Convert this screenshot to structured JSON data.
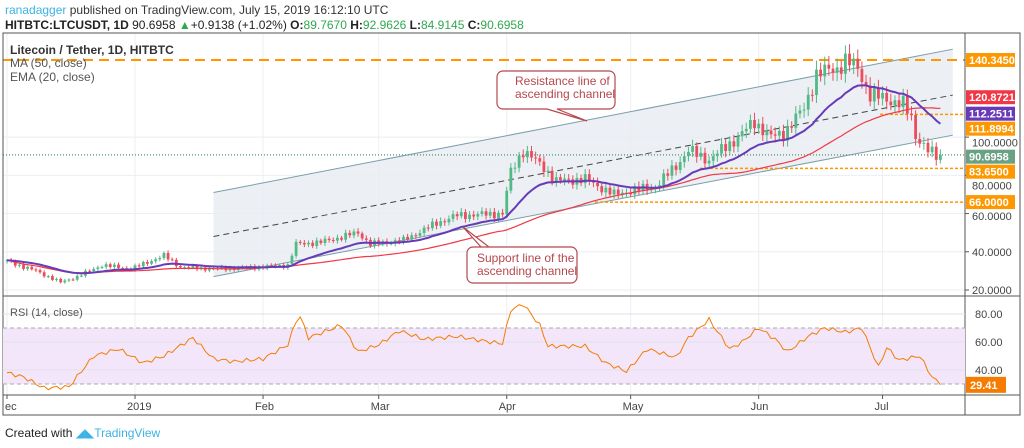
{
  "header": {
    "user": "ranadagger",
    "published": "published on TradingView.com, July 15, 2019 16:12:10 UTC",
    "symbol": "HITBTC:LTCUSDT, 1D",
    "last": "90.6958",
    "change": "+0.9138 (+1.02%)",
    "o_label": "O:",
    "o": "89.7670",
    "h_label": "H:",
    "h": "92.9626",
    "l_label": "L:",
    "l": "84.9145",
    "c_label": "C:",
    "c": "90.6958"
  },
  "legend": {
    "title": "Litecoin / Tether, 1D, HITBTC",
    "ma": "MA (50, close)",
    "ema": "EMA (20, close)",
    "rsi": "RSI (14, close)"
  },
  "annotations": {
    "resistance": [
      "Resistance line of",
      "ascending channel"
    ],
    "support": [
      "Support line of the",
      "ascending channel"
    ]
  },
  "footer": {
    "created": "Created with",
    "brand": "TradingView"
  },
  "colors": {
    "up": "#53b987",
    "down": "#eb4d5c",
    "ma": "#f23645",
    "ema": "#673ab7",
    "level": "#ff9800",
    "rsi": "#f57c00"
  },
  "chart_data": {
    "type": "candlestick",
    "price_axis": {
      "range": [
        20,
        140.345
      ],
      "ticks": [
        "100.0000",
        "80.0000",
        "60.0000",
        "40.0000",
        "20.0000"
      ]
    },
    "price_labels": [
      {
        "text": "140.3450",
        "value": 140.345,
        "color": "#ff9800"
      },
      {
        "text": "120.8721",
        "value": 120.8721,
        "color": "#f23645"
      },
      {
        "text": "112.2511",
        "value": 112.2511,
        "color": "#673ab7"
      },
      {
        "text": "111.8994",
        "value": 111.8994,
        "color": "#ff9800"
      },
      {
        "text": "90.6958",
        "value": 90.6958,
        "color": "#6aa084"
      },
      {
        "text": "83.6500",
        "value": 83.65,
        "color": "#ff9800"
      },
      {
        "text": "66.0000",
        "value": 66,
        "color": "#ff9800"
      }
    ],
    "x_ticks": [
      {
        "label": "ec",
        "date": "2018-12-01"
      },
      {
        "label": "2019",
        "date": "2019-01-01"
      },
      {
        "label": "Feb",
        "date": "2019-02-01"
      },
      {
        "label": "Mar",
        "date": "2019-03-01"
      },
      {
        "label": "Apr",
        "date": "2019-04-01"
      },
      {
        "label": "May",
        "date": "2019-05-01"
      },
      {
        "label": "Jun",
        "date": "2019-06-01"
      },
      {
        "label": "Jul",
        "date": "2019-07-01"
      }
    ],
    "close_keypoints": [
      [
        "2018-12-01",
        35
      ],
      [
        "2018-12-08",
        30
      ],
      [
        "2018-12-14",
        24
      ],
      [
        "2018-12-18",
        27
      ],
      [
        "2018-12-24",
        33
      ],
      [
        "2018-12-31",
        31
      ],
      [
        "2019-01-08",
        38
      ],
      [
        "2019-01-12",
        32
      ],
      [
        "2019-01-20",
        31
      ],
      [
        "2019-01-31",
        32
      ],
      [
        "2019-02-07",
        33
      ],
      [
        "2019-02-09",
        44
      ],
      [
        "2019-02-15",
        45
      ],
      [
        "2019-02-24",
        50
      ],
      [
        "2019-02-27",
        44
      ],
      [
        "2019-03-07",
        46
      ],
      [
        "2019-03-15",
        55
      ],
      [
        "2019-03-20",
        59
      ],
      [
        "2019-03-31",
        60
      ],
      [
        "2019-04-02",
        82
      ],
      [
        "2019-04-05",
        93
      ],
      [
        "2019-04-10",
        84
      ],
      [
        "2019-04-13",
        77
      ],
      [
        "2019-04-20",
        78
      ],
      [
        "2019-04-27",
        70
      ],
      [
        "2019-05-01",
        72
      ],
      [
        "2019-05-07",
        74
      ],
      [
        "2019-05-12",
        85
      ],
      [
        "2019-05-15",
        93
      ],
      [
        "2019-05-20",
        88
      ],
      [
        "2019-05-27",
        100
      ],
      [
        "2019-05-31",
        108
      ],
      [
        "2019-06-04",
        100
      ],
      [
        "2019-06-07",
        102
      ],
      [
        "2019-06-12",
        115
      ],
      [
        "2019-06-15",
        133
      ],
      [
        "2019-06-20",
        136
      ],
      [
        "2019-06-22",
        140
      ],
      [
        "2019-06-25",
        136
      ],
      [
        "2019-06-28",
        122
      ],
      [
        "2019-07-02",
        120
      ],
      [
        "2019-07-06",
        117
      ],
      [
        "2019-07-08",
        110
      ],
      [
        "2019-07-09",
        101
      ],
      [
        "2019-07-12",
        93
      ],
      [
        "2019-07-14",
        89.8
      ],
      [
        "2019-07-15",
        90.7
      ]
    ],
    "channel": {
      "start_date": "2019-01-20",
      "end_date": "2019-07-18",
      "support": [
        27,
        101
      ],
      "resistance": [
        71,
        146
      ],
      "mid": [
        48,
        122
      ]
    },
    "rsi": {
      "value_label": "29.41",
      "ticks": [
        "80.00",
        "60.00",
        "40.00"
      ],
      "range": [
        20,
        90
      ],
      "bands": [
        30,
        70
      ],
      "keypoints": [
        [
          "2018-12-01",
          38
        ],
        [
          "2018-12-05",
          35
        ],
        [
          "2018-12-10",
          27
        ],
        [
          "2018-12-16",
          28
        ],
        [
          "2018-12-22",
          50
        ],
        [
          "2018-12-28",
          55
        ],
        [
          "2019-01-03",
          45
        ],
        [
          "2019-01-08",
          50
        ],
        [
          "2019-01-15",
          63
        ],
        [
          "2019-01-20",
          48
        ],
        [
          "2019-01-25",
          46
        ],
        [
          "2019-02-01",
          48
        ],
        [
          "2019-02-07",
          58
        ],
        [
          "2019-02-09",
          75
        ],
        [
          "2019-02-10",
          78
        ],
        [
          "2019-02-12",
          63
        ],
        [
          "2019-02-20",
          72
        ],
        [
          "2019-02-24",
          53
        ],
        [
          "2019-03-01",
          58
        ],
        [
          "2019-03-06",
          68
        ],
        [
          "2019-03-12",
          62
        ],
        [
          "2019-03-20",
          64
        ],
        [
          "2019-03-28",
          60
        ],
        [
          "2019-03-31",
          59
        ],
        [
          "2019-04-02",
          83
        ],
        [
          "2019-04-05",
          87
        ],
        [
          "2019-04-09",
          72
        ],
        [
          "2019-04-11",
          57
        ],
        [
          "2019-04-20",
          57
        ],
        [
          "2019-04-25",
          45
        ],
        [
          "2019-04-30",
          39
        ],
        [
          "2019-05-05",
          55
        ],
        [
          "2019-05-12",
          49
        ],
        [
          "2019-05-15",
          63
        ],
        [
          "2019-05-20",
          76
        ],
        [
          "2019-05-25",
          55
        ],
        [
          "2019-05-28",
          60
        ],
        [
          "2019-06-01",
          70
        ],
        [
          "2019-06-05",
          62
        ],
        [
          "2019-06-08",
          53
        ],
        [
          "2019-06-13",
          64
        ],
        [
          "2019-06-17",
          70
        ],
        [
          "2019-06-22",
          67
        ],
        [
          "2019-06-26",
          70
        ],
        [
          "2019-06-30",
          42
        ],
        [
          "2019-07-02",
          56
        ],
        [
          "2019-07-05",
          47
        ],
        [
          "2019-07-10",
          50
        ],
        [
          "2019-07-13",
          35
        ],
        [
          "2019-07-15",
          29.41
        ]
      ]
    }
  }
}
